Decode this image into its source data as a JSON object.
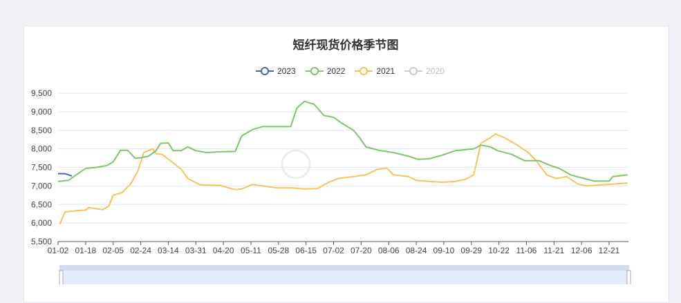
{
  "chart_data": {
    "type": "line",
    "title": "短纤现货价格季节图",
    "ylim": [
      5500,
      9500
    ],
    "yticks": [
      "5,500",
      "6,000",
      "6,500",
      "7,000",
      "7,500",
      "8,000",
      "8,500",
      "9,000",
      "9,500"
    ],
    "ytick_values": [
      5500,
      6000,
      6500,
      7000,
      7500,
      8000,
      8500,
      9000,
      9500
    ],
    "xticks": [
      "01-02",
      "01-18",
      "02-05",
      "02-24",
      "03-14",
      "03-31",
      "04-20",
      "05-11",
      "05-28",
      "06-15",
      "07-02",
      "07-20",
      "08-06",
      "08-24",
      "09-10",
      "09-29",
      "10-22",
      "11-06",
      "11-21",
      "12-06",
      "12-21"
    ],
    "grid": true,
    "legend_position": "top",
    "series": [
      {
        "name": "2023",
        "color": "#4a5fbf",
        "visible": true,
        "points": [
          [
            "01-02",
            7330
          ],
          [
            "01-06",
            7330
          ],
          [
            "01-10",
            7270
          ]
        ]
      },
      {
        "name": "2022",
        "color": "#7cc56a",
        "visible": true,
        "points": [
          [
            "01-02",
            7120
          ],
          [
            "01-08",
            7150
          ],
          [
            "01-12",
            7280
          ],
          [
            "01-18",
            7470
          ],
          [
            "01-25",
            7500
          ],
          [
            "02-01",
            7550
          ],
          [
            "02-05",
            7650
          ],
          [
            "02-10",
            7960
          ],
          [
            "02-15",
            7960
          ],
          [
            "02-20",
            7750
          ],
          [
            "02-24",
            7760
          ],
          [
            "03-01",
            7800
          ],
          [
            "03-06",
            7950
          ],
          [
            "03-09",
            8150
          ],
          [
            "03-14",
            8160
          ],
          [
            "03-17",
            7950
          ],
          [
            "03-22",
            7950
          ],
          [
            "03-26",
            8050
          ],
          [
            "03-31",
            7950
          ],
          [
            "04-08",
            7900
          ],
          [
            "04-18",
            7920
          ],
          [
            "04-29",
            7930
          ],
          [
            "05-04",
            8350
          ],
          [
            "05-12",
            8520
          ],
          [
            "05-18",
            8600
          ],
          [
            "05-27",
            8600
          ],
          [
            "06-05",
            8600
          ],
          [
            "06-09",
            9100
          ],
          [
            "06-14",
            9280
          ],
          [
            "06-20",
            9200
          ],
          [
            "06-26",
            8900
          ],
          [
            "07-02",
            8850
          ],
          [
            "07-07",
            8700
          ],
          [
            "07-15",
            8500
          ],
          [
            "07-19",
            8300
          ],
          [
            "07-23",
            8050
          ],
          [
            "08-01",
            7950
          ],
          [
            "08-09",
            7900
          ],
          [
            "08-19",
            7800
          ],
          [
            "08-25",
            7720
          ],
          [
            "09-01",
            7730
          ],
          [
            "09-09",
            7830
          ],
          [
            "09-18",
            7950
          ],
          [
            "10-01",
            8000
          ],
          [
            "10-07",
            8100
          ],
          [
            "10-15",
            8050
          ],
          [
            "10-21",
            7950
          ],
          [
            "10-29",
            7850
          ],
          [
            "11-05",
            7680
          ],
          [
            "11-13",
            7680
          ],
          [
            "11-19",
            7550
          ],
          [
            "11-24",
            7470
          ],
          [
            "11-30",
            7300
          ],
          [
            "12-06",
            7220
          ],
          [
            "12-13",
            7130
          ],
          [
            "12-21",
            7130
          ],
          [
            "12-23",
            7250
          ],
          [
            "12-28",
            7280
          ],
          [
            "12-31",
            7300
          ]
        ]
      },
      {
        "name": "2021",
        "color": "#f9c259",
        "visible": true,
        "points": [
          [
            "01-03",
            5970
          ],
          [
            "01-06",
            6300
          ],
          [
            "01-12",
            6330
          ],
          [
            "01-18",
            6350
          ],
          [
            "01-20",
            6420
          ],
          [
            "01-26",
            6380
          ],
          [
            "01-29",
            6360
          ],
          [
            "02-02",
            6450
          ],
          [
            "02-05",
            6750
          ],
          [
            "02-11",
            6820
          ],
          [
            "02-17",
            7050
          ],
          [
            "02-22",
            7400
          ],
          [
            "02-26",
            7900
          ],
          [
            "03-01",
            7950
          ],
          [
            "03-04",
            8000
          ],
          [
            "03-06",
            7870
          ],
          [
            "03-10",
            7850
          ],
          [
            "03-17",
            7620
          ],
          [
            "03-22",
            7450
          ],
          [
            "03-26",
            7200
          ],
          [
            "04-03",
            7030
          ],
          [
            "04-18",
            7010
          ],
          [
            "04-29",
            6900
          ],
          [
            "05-04",
            6920
          ],
          [
            "05-12",
            7040
          ],
          [
            "05-18",
            7000
          ],
          [
            "05-27",
            6950
          ],
          [
            "06-05",
            6950
          ],
          [
            "06-14",
            6920
          ],
          [
            "06-22",
            6930
          ],
          [
            "06-29",
            7100
          ],
          [
            "07-05",
            7200
          ],
          [
            "07-15",
            7250
          ],
          [
            "07-23",
            7300
          ],
          [
            "07-30",
            7450
          ],
          [
            "08-05",
            7480
          ],
          [
            "08-09",
            7300
          ],
          [
            "08-19",
            7250
          ],
          [
            "08-24",
            7150
          ],
          [
            "09-01",
            7120
          ],
          [
            "09-09",
            7100
          ],
          [
            "09-18",
            7120
          ],
          [
            "09-25",
            7180
          ],
          [
            "10-01",
            7300
          ],
          [
            "10-07",
            8150
          ],
          [
            "10-15",
            8300
          ],
          [
            "10-19",
            8400
          ],
          [
            "10-25",
            8300
          ],
          [
            "11-01",
            8100
          ],
          [
            "11-07",
            7900
          ],
          [
            "11-11",
            7700
          ],
          [
            "11-17",
            7300
          ],
          [
            "11-22",
            7200
          ],
          [
            "11-28",
            7250
          ],
          [
            "12-04",
            7050
          ],
          [
            "12-09",
            7000
          ],
          [
            "12-17",
            7030
          ],
          [
            "12-23",
            7050
          ],
          [
            "12-31",
            7080
          ]
        ]
      },
      {
        "name": "2020",
        "color": "#cccccc",
        "visible": false,
        "points": []
      }
    ]
  }
}
